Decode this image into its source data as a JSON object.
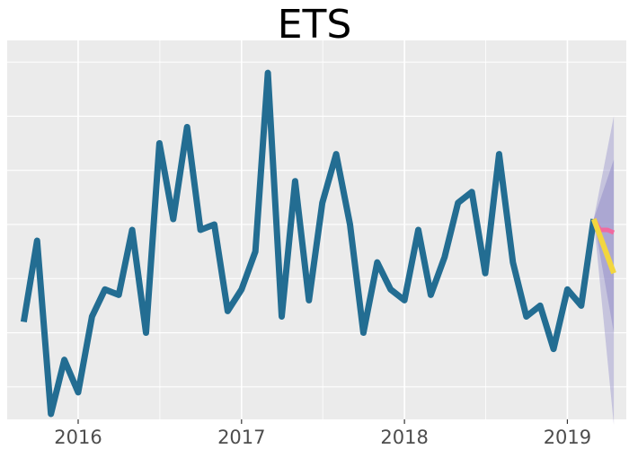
{
  "chart_data": {
    "type": "line",
    "title": "ETS",
    "xlabel": "",
    "ylabel": "",
    "grid": true,
    "legend": "none",
    "xlim": [
      "2015-07-26",
      "2019-05-13"
    ],
    "ylim": [
      -0.6,
      6.4
    ],
    "x_ticks": [
      "2016",
      "2017",
      "2018",
      "2019"
    ],
    "x_tick_dates": [
      "2016-01-01",
      "2017-01-01",
      "2018-01-01",
      "2019-01-01"
    ],
    "y_grid_values": [
      0,
      1,
      2,
      3,
      4,
      5,
      6
    ],
    "colors": {
      "panel_background": "#ebebeb",
      "grid": "#ffffff",
      "history": "#236d92",
      "forecast_mean": "#f2d63f",
      "forecast_alt": "#f06aa0",
      "forecast_band": "#9a94cc"
    },
    "series": [
      {
        "type": "history",
        "x": [
          "2015-09-01",
          "2015-10-01",
          "2015-11-01",
          "2015-12-01",
          "2016-01-01",
          "2016-02-01",
          "2016-03-01",
          "2016-04-01",
          "2016-05-01",
          "2016-06-01",
          "2016-07-01",
          "2016-08-01",
          "2016-09-01",
          "2016-10-01",
          "2016-11-01",
          "2016-12-01",
          "2017-01-01",
          "2017-02-01",
          "2017-03-01",
          "2017-04-01",
          "2017-05-01",
          "2017-06-01",
          "2017-07-01",
          "2017-08-01",
          "2017-09-01",
          "2017-10-01",
          "2017-11-01",
          "2017-12-01",
          "2018-01-01",
          "2018-02-01",
          "2018-03-01",
          "2018-04-01",
          "2018-05-01",
          "2018-06-01",
          "2018-07-01",
          "2018-08-01",
          "2018-09-01",
          "2018-10-01",
          "2018-11-01",
          "2018-12-01",
          "2019-01-01",
          "2019-02-01",
          "2019-03-01"
        ],
        "y": [
          1.2,
          2.7,
          -0.5,
          0.5,
          -0.1,
          1.3,
          1.8,
          1.7,
          2.9,
          1.0,
          4.5,
          3.1,
          4.8,
          2.9,
          3.0,
          1.4,
          1.8,
          2.5,
          5.8,
          1.3,
          3.8,
          1.6,
          3.4,
          4.3,
          3.0,
          1.0,
          2.3,
          1.8,
          1.6,
          2.9,
          1.7,
          2.4,
          3.4,
          3.6,
          2.1,
          4.3,
          2.3,
          1.3,
          1.5,
          0.7,
          1.8,
          1.5,
          3.1
        ]
      },
      {
        "type": "forecast_mean",
        "x": [
          "2019-03-01",
          "2019-04-15"
        ],
        "y": [
          3.1,
          2.1
        ]
      },
      {
        "type": "forecast_alt",
        "x": [
          "2019-03-01",
          "2019-03-15",
          "2019-04-01",
          "2019-04-15"
        ],
        "y": [
          3.1,
          2.9,
          2.9,
          2.85
        ]
      },
      {
        "type": "forecast_interval",
        "x": [
          "2019-03-01",
          "2019-04-15"
        ],
        "lower_80": [
          3.1,
          1.0
        ],
        "upper_80": [
          3.1,
          4.2
        ],
        "lower_95": [
          3.1,
          -0.7
        ],
        "upper_95": [
          3.1,
          5.0
        ]
      }
    ]
  }
}
